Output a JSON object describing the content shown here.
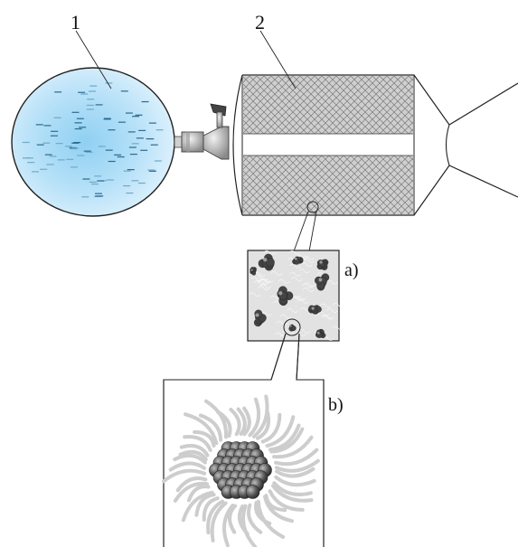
{
  "labels": {
    "tank": "1",
    "engine": "2",
    "detail_a": "a)",
    "detail_b": "b)"
  },
  "colors": {
    "tank_light": "#d2ecfb",
    "tank_mid": "#8fd0f2",
    "tank_dark": "#4aaee0",
    "outline": "#222222",
    "grain": "#cfcfcf",
    "hatch": "#7a7a7a",
    "cluster": "#5a5a5a",
    "shell": "#bdbdbd"
  }
}
